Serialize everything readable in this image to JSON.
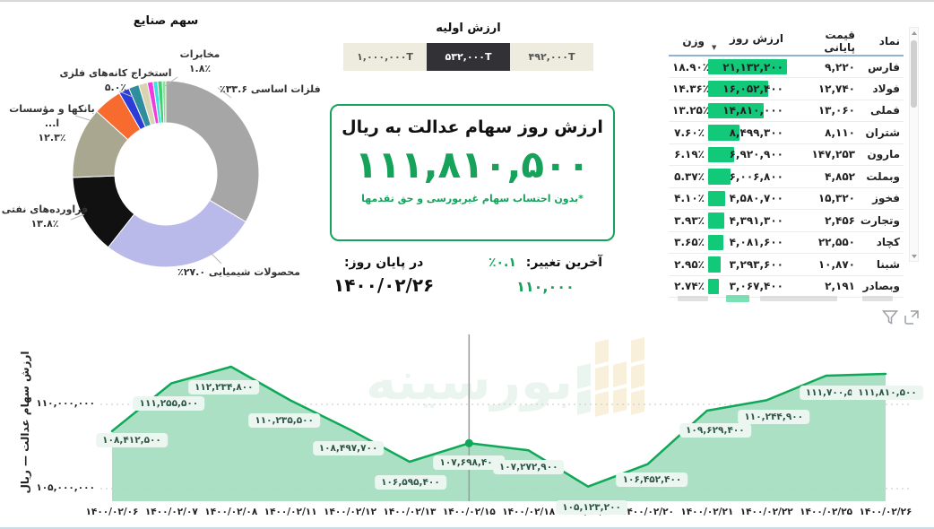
{
  "donut": {
    "title": "سهم صنایع",
    "labels": {
      "telecom_name": "مخابرات",
      "telecom_pct": "۱.۸٪",
      "mining_name": "استخراج کانه‌های فلزی",
      "mining_pct": "۵.۰٪",
      "banks_name": "بانکها و مؤسسات ا...",
      "banks_pct": "۱۲.۳٪",
      "metals_label": "٪۳۳.۶ فلزات اساسی",
      "oil_name": "فراورده‌های نفتی",
      "oil_pct": "۱۳.۸٪",
      "chem_label": "٪۲۷.۰ محصولات شیمیایی"
    }
  },
  "initial_value": {
    "title": "ارزش اولیه",
    "options": [
      {
        "label": "۱,۰۰۰,۰۰۰T",
        "selected": false
      },
      {
        "label": "۵۳۲,۰۰۰T",
        "selected": true
      },
      {
        "label": "۴۹۲,۰۰۰T",
        "selected": false
      }
    ]
  },
  "value_box": {
    "title": "ارزش روز سهام عدالت به ریال",
    "value": "۱۱۱,۸۱۰,۵۰۰",
    "footnote": "*بدون احتساب سهام غیربورسی و حق تقدمها"
  },
  "change": {
    "label": "آخرین تغییر:",
    "pct": "٪۰.۱",
    "amount": "۱۱۰,۰۰۰",
    "eod_label": "در پایان روز:",
    "date": "۱۴۰۰/۰۲/۲۶"
  },
  "table": {
    "headers": {
      "symbol": "نماد",
      "close": "قیمت پایانی",
      "day_value": "ارزش روز",
      "weight": "وزن"
    },
    "rows": [
      {
        "symbol": "فارس",
        "close": "۹,۲۲۰",
        "close_red": false,
        "day_value": "۲۱,۱۳۲,۲۰۰",
        "weight": "۱۸.۹۰٪",
        "bar": 100
      },
      {
        "symbol": "فولاد",
        "close": "۱۲,۷۴۰",
        "close_red": false,
        "day_value": "۱۶,۰۵۲,۴۰۰",
        "weight": "۱۴.۳۶٪",
        "bar": 76
      },
      {
        "symbol": "فملی",
        "close": "۱۳,۰۶۰",
        "close_red": false,
        "day_value": "۱۴,۸۱۰,۰۰۰",
        "weight": "۱۳.۲۵٪",
        "bar": 70
      },
      {
        "symbol": "شتران",
        "close": "۸,۱۱۰",
        "close_red": false,
        "day_value": "۸,۴۹۹,۳۰۰",
        "weight": "۷.۶۰٪",
        "bar": 40
      },
      {
        "symbol": "مارون",
        "close": "۱۴۷,۲۵۳",
        "close_red": false,
        "day_value": "۶,۹۲۰,۹۰۰",
        "weight": "۶.۱۹٪",
        "bar": 33
      },
      {
        "symbol": "وبملت",
        "close": "۴,۸۵۲",
        "close_red": true,
        "day_value": "۶,۰۰۶,۸۰۰",
        "weight": "۵.۳۷٪",
        "bar": 28
      },
      {
        "symbol": "فخوز",
        "close": "۱۵,۳۲۰",
        "close_red": false,
        "day_value": "۴,۵۸۰,۷۰۰",
        "weight": "۴.۱۰٪",
        "bar": 22
      },
      {
        "symbol": "وتجارت",
        "close": "۲,۴۵۶",
        "close_red": false,
        "day_value": "۴,۳۹۱,۳۰۰",
        "weight": "۳.۹۳٪",
        "bar": 21
      },
      {
        "symbol": "کچاد",
        "close": "۲۲,۵۵۰",
        "close_red": false,
        "day_value": "۴,۰۸۱,۶۰۰",
        "weight": "۳.۶۵٪",
        "bar": 19
      },
      {
        "symbol": "شبنا",
        "close": "۱۰,۸۷۰",
        "close_red": false,
        "day_value": "۳,۲۹۳,۶۰۰",
        "weight": "۲.۹۵٪",
        "bar": 16
      },
      {
        "symbol": "وبصادر",
        "close": "۲,۱۹۱",
        "close_red": false,
        "day_value": "۳,۰۶۷,۴۰۰",
        "weight": "۲.۷۴٪",
        "bar": 14
      }
    ]
  },
  "watermark": {
    "text": "بورسینه"
  },
  "colors": {
    "green_main": "#16a25b",
    "green_bar": "#12c97a",
    "area_fill": "#a6dec1",
    "area_line": "#0fa758",
    "red": "#e33535"
  },
  "chart_data": [
    {
      "type": "pie",
      "title": "سهم صنایع",
      "slices": [
        {
          "label": "فلزات اساسی",
          "value": 33.6,
          "color": "#a6a6a6"
        },
        {
          "label": "محصولات شیمیایی",
          "value": 27.0,
          "color": "#b9b9ea"
        },
        {
          "label": "فراورده‌های نفتی",
          "value": 13.8,
          "color": "#111111"
        },
        {
          "label": "بانکها و مؤسسات ا...",
          "value": 12.3,
          "color": "#a9a78f"
        },
        {
          "label": "استخراج کانه‌های فلزی",
          "value": 5.0,
          "color": "#f76b2e"
        },
        {
          "label": "مخابرات",
          "value": 1.8,
          "color": "#2c3cd8"
        },
        {
          "label": "",
          "value": 1.8,
          "color": "#2f8e9e"
        },
        {
          "label": "",
          "value": 1.5,
          "color": "#d9d3b1"
        },
        {
          "label": "",
          "value": 1.0,
          "color": "#ee3ce0"
        },
        {
          "label": "",
          "value": 0.8,
          "color": "#3be3dd"
        },
        {
          "label": "",
          "value": 0.8,
          "color": "#3fd074"
        },
        {
          "label": "",
          "value": 0.6,
          "color": "#8fe09a"
        }
      ]
    },
    {
      "type": "area",
      "ylabel": "ارزش سهام عدالت — ریال",
      "x": [
        "۱۴۰۰/۰۲/۰۶",
        "۱۴۰۰/۰۲/۰۷",
        "۱۴۰۰/۰۲/۰۸",
        "۱۴۰۰/۰۲/۱۱",
        "۱۴۰۰/۰۲/۱۲",
        "۱۴۰۰/۰۲/۱۳",
        "۱۴۰۰/۰۲/۱۵",
        "۱۴۰۰/۰۲/۱۸",
        "۱۴۰۰/۰۲/۱۹",
        "۱۴۰۰/۰۲/۲۰",
        "۱۴۰۰/۰۲/۲۱",
        "۱۴۰۰/۰۲/۲۲",
        "۱۴۰۰/۰۲/۲۵",
        "۱۴۰۰/۰۲/۲۶"
      ],
      "values": [
        108412500,
        111255500,
        112234800,
        110235500,
        108497700,
        106595400,
        107698400,
        107272900,
        105123200,
        106452400,
        109629400,
        110244900,
        111700500,
        111810500
      ],
      "point_labels": [
        "۱۰۸,۴۱۲,۵۰۰",
        "۱۱۱,۲۵۵,۵۰۰",
        "۱۱۲,۲۳۴,۸۰۰",
        "۱۱۰,۲۳۵,۵۰۰",
        "۱۰۸,۴۹۷,۷۰۰",
        "۱۰۶,۵۹۵,۴۰۰",
        "۱۰۷,۶۹۸,۴۰۰",
        "۱۰۷,۲۷۲,۹۰۰",
        "۱۰۵,۱۲۳,۲۰۰",
        "۱۰۶,۴۵۲,۴۰۰",
        "۱۰۹,۶۲۹,۴۰۰",
        "۱۱۰,۲۴۴,۹۰۰",
        "۱۱۱,۷۰۰,۵۰۰",
        "۱۱۱,۸۱۰,۵۰۰"
      ],
      "yticks": [
        {
          "value": 110000000,
          "label": "۱۱۰,۰۰۰,۰۰۰"
        },
        {
          "value": 105000000,
          "label": "۱۰۵,۰۰۰,۰۰۰"
        }
      ],
      "crosshair_index": 6,
      "grid": "dotted",
      "legend": "none"
    }
  ]
}
